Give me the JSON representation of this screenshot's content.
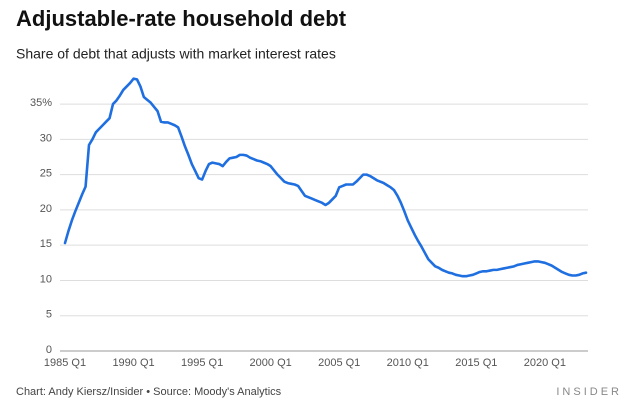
{
  "chart_data": {
    "type": "line",
    "title": "Adjustable-rate household debt",
    "subtitle": "Share of debt that adjusts with market interest rates",
    "source": "Chart: Andy Kiersz/Insider • Source: Moody's Analytics",
    "brand": "INSIDER",
    "color": "#1f6fe0",
    "grid": true,
    "ylim": [
      0,
      40
    ],
    "yticks": [
      0,
      5,
      10,
      15,
      20,
      25,
      30,
      {
        "value": 35,
        "label": "35%"
      }
    ],
    "categories": [
      "1985 Q1",
      null,
      null,
      null,
      null,
      null,
      null,
      null,
      null,
      null,
      null,
      null,
      null,
      null,
      null,
      null,
      null,
      null,
      null,
      null,
      "1990 Q1",
      null,
      null,
      null,
      null,
      null,
      null,
      null,
      null,
      null,
      null,
      null,
      null,
      null,
      null,
      null,
      null,
      null,
      null,
      null,
      "1995 Q1",
      null,
      null,
      null,
      null,
      null,
      null,
      null,
      null,
      null,
      null,
      null,
      null,
      null,
      null,
      null,
      null,
      null,
      null,
      null,
      "2000 Q1",
      null,
      null,
      null,
      null,
      null,
      null,
      null,
      null,
      null,
      null,
      null,
      null,
      null,
      null,
      null,
      null,
      null,
      null,
      null,
      "2005 Q1",
      null,
      null,
      null,
      null,
      null,
      null,
      null,
      null,
      null,
      null,
      null,
      null,
      null,
      null,
      null,
      null,
      null,
      null,
      null,
      "2010 Q1",
      null,
      null,
      null,
      null,
      null,
      null,
      null,
      null,
      null,
      null,
      null,
      null,
      null,
      null,
      null,
      null,
      null,
      null,
      null,
      "2015 Q1",
      null,
      null,
      null,
      null,
      null,
      null,
      null,
      null,
      null,
      null,
      null,
      null,
      null,
      null,
      null,
      null,
      null,
      null,
      null,
      "2020 Q1",
      null,
      null,
      null,
      null,
      null,
      null,
      null,
      null,
      null,
      null,
      null,
      null
    ],
    "values": [
      15.3,
      17.0,
      18.5,
      19.8,
      21.0,
      22.2,
      23.3,
      29.2,
      30.0,
      31.0,
      31.5,
      32.0,
      32.5,
      33.0,
      35.0,
      35.5,
      36.2,
      37.0,
      37.5,
      38.0,
      38.6,
      38.5,
      37.5,
      36.0,
      35.6,
      35.2,
      34.6,
      34.0,
      32.5,
      32.4,
      32.4,
      32.2,
      32.0,
      31.7,
      30.4,
      29.0,
      27.8,
      26.5,
      25.5,
      24.5,
      24.3,
      25.5,
      26.5,
      26.7,
      26.6,
      26.5,
      26.2,
      26.8,
      27.3,
      27.4,
      27.5,
      27.8,
      27.8,
      27.7,
      27.4,
      27.2,
      27.0,
      26.9,
      26.7,
      26.5,
      26.2,
      25.6,
      25.0,
      24.5,
      24.0,
      23.8,
      23.7,
      23.6,
      23.4,
      22.7,
      22.0,
      21.8,
      21.6,
      21.4,
      21.2,
      21.0,
      20.7,
      21.0,
      21.5,
      22.0,
      23.2,
      23.4,
      23.6,
      23.6,
      23.6,
      24.0,
      24.5,
      25.0,
      25.0,
      24.8,
      24.5,
      24.2,
      24.0,
      23.8,
      23.5,
      23.2,
      22.8,
      22.0,
      21.0,
      19.8,
      18.5,
      17.5,
      16.5,
      15.6,
      14.8,
      13.9,
      13.0,
      12.5,
      12.0,
      11.8,
      11.5,
      11.3,
      11.1,
      11.0,
      10.8,
      10.7,
      10.6,
      10.6,
      10.7,
      10.8,
      11.0,
      11.2,
      11.3,
      11.3,
      11.4,
      11.5,
      11.5,
      11.6,
      11.7,
      11.8,
      11.9,
      12.0,
      12.2,
      12.3,
      12.4,
      12.5,
      12.6,
      12.7,
      12.7,
      12.6,
      12.5,
      12.3,
      12.1,
      11.8,
      11.5,
      11.2,
      11.0,
      10.8,
      10.7,
      10.7,
      10.8,
      11.0,
      11.1
    ]
  }
}
